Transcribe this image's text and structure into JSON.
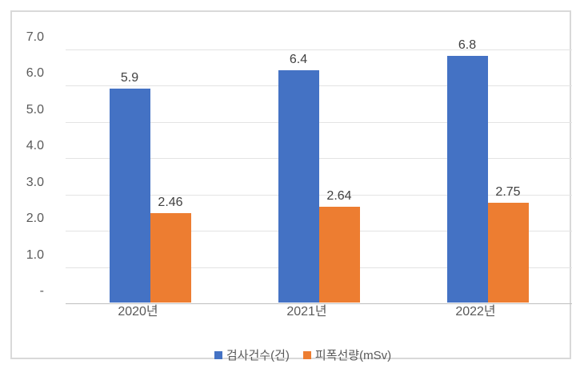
{
  "chart_data": {
    "type": "bar",
    "title": "",
    "xlabel": "",
    "ylabel": "",
    "categories": [
      "2020년",
      "2021년",
      "2022년"
    ],
    "series": [
      {
        "name": "검사건수(건)",
        "color": "#4472C4",
        "values": [
          5.9,
          6.4,
          6.8
        ],
        "value_labels": [
          "5.9",
          "6.4",
          "6.8"
        ]
      },
      {
        "name": "피폭선량(mSv)",
        "color": "#ED7D31",
        "values": [
          2.46,
          2.64,
          2.75
        ],
        "value_labels": [
          "2.46",
          "2.64",
          "2.75"
        ]
      }
    ],
    "ylim": [
      0,
      7
    ],
    "ytick_step": 1.0,
    "ytick_labels": [
      "-",
      "1.0",
      "2.0",
      "3.0",
      "4.0",
      "5.0",
      "6.0",
      "7.0"
    ],
    "grid": true,
    "legend_position": "bottom"
  },
  "colors": {
    "series_1": "#4472C4",
    "series_2": "#ED7D31",
    "gridline": "#e3e3e3",
    "axis_line": "#bfbfbf",
    "tick_text": "#595959",
    "data_label_text": "#404040",
    "chart_border": "#d9d9d9",
    "background": "#ffffff"
  }
}
